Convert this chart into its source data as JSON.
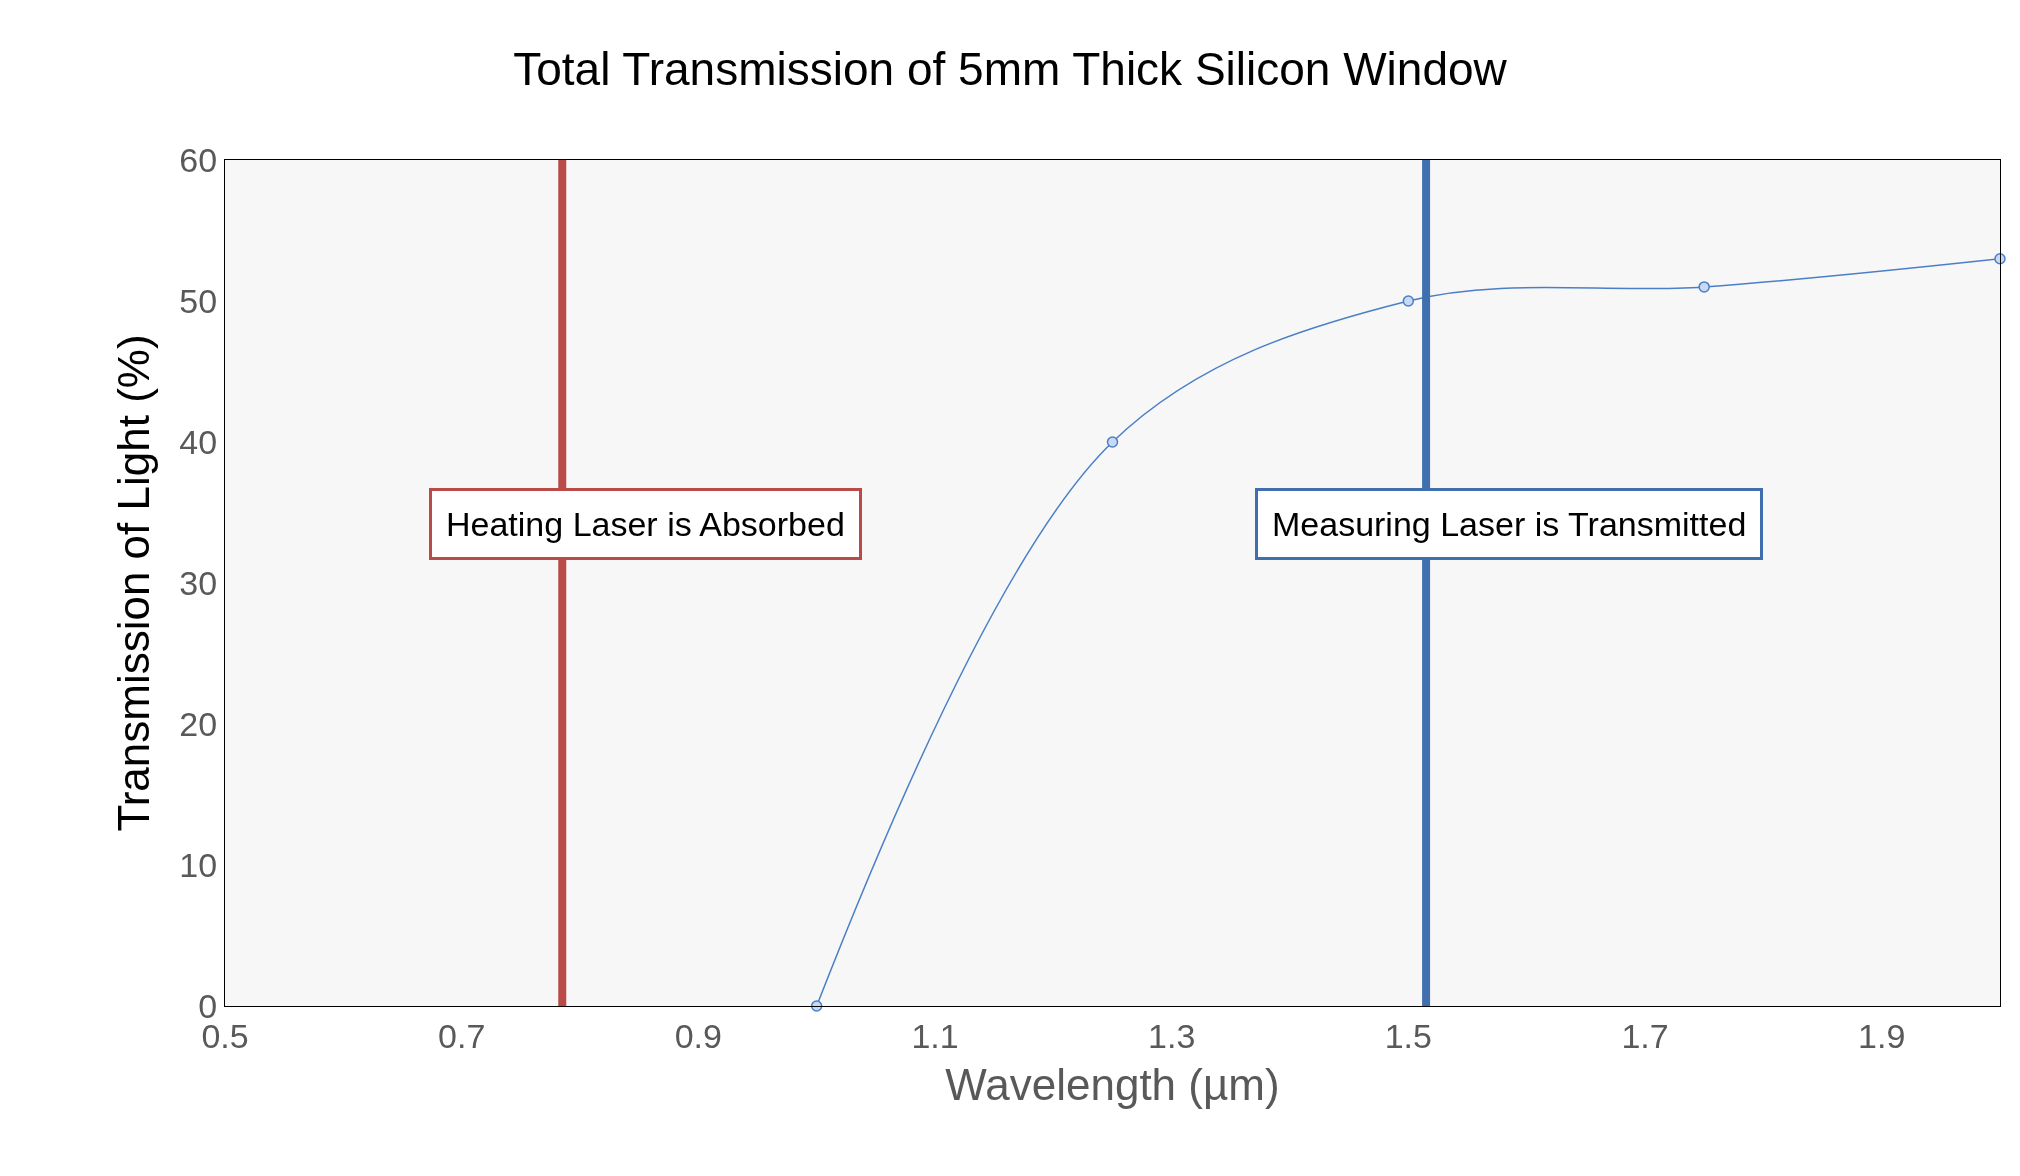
{
  "chart_data": {
    "type": "line",
    "title": "Total Transmission of 5mm Thick Silicon Window",
    "xlabel": "Wavelength (µm)",
    "ylabel": "Transmission of Light (%)",
    "x": [
      1.0,
      1.25,
      1.5,
      1.75,
      2.0
    ],
    "series": [
      {
        "color": "#4a7fc8",
        "values": [
          0,
          40,
          50,
          51,
          53
        ]
      }
    ],
    "xlim": [
      0.5,
      2.0
    ],
    "xticks": [
      0.5,
      0.7,
      0.9,
      1.1,
      1.3,
      1.5,
      1.7,
      1.9
    ],
    "ylim": [
      0,
      60
    ],
    "yticks": [
      0,
      10,
      20,
      30,
      40,
      50,
      60
    ],
    "grid": false,
    "marker": "circle",
    "line_style": "solid",
    "ref_lines": [
      {
        "axis": "x",
        "value": 0.785,
        "label": "Heating Laser is Absorbed",
        "color": "#b94a48"
      },
      {
        "axis": "x",
        "value": 1.515,
        "label": "Measuring Laser is Transmitted",
        "color": "#3f6faf"
      }
    ]
  }
}
